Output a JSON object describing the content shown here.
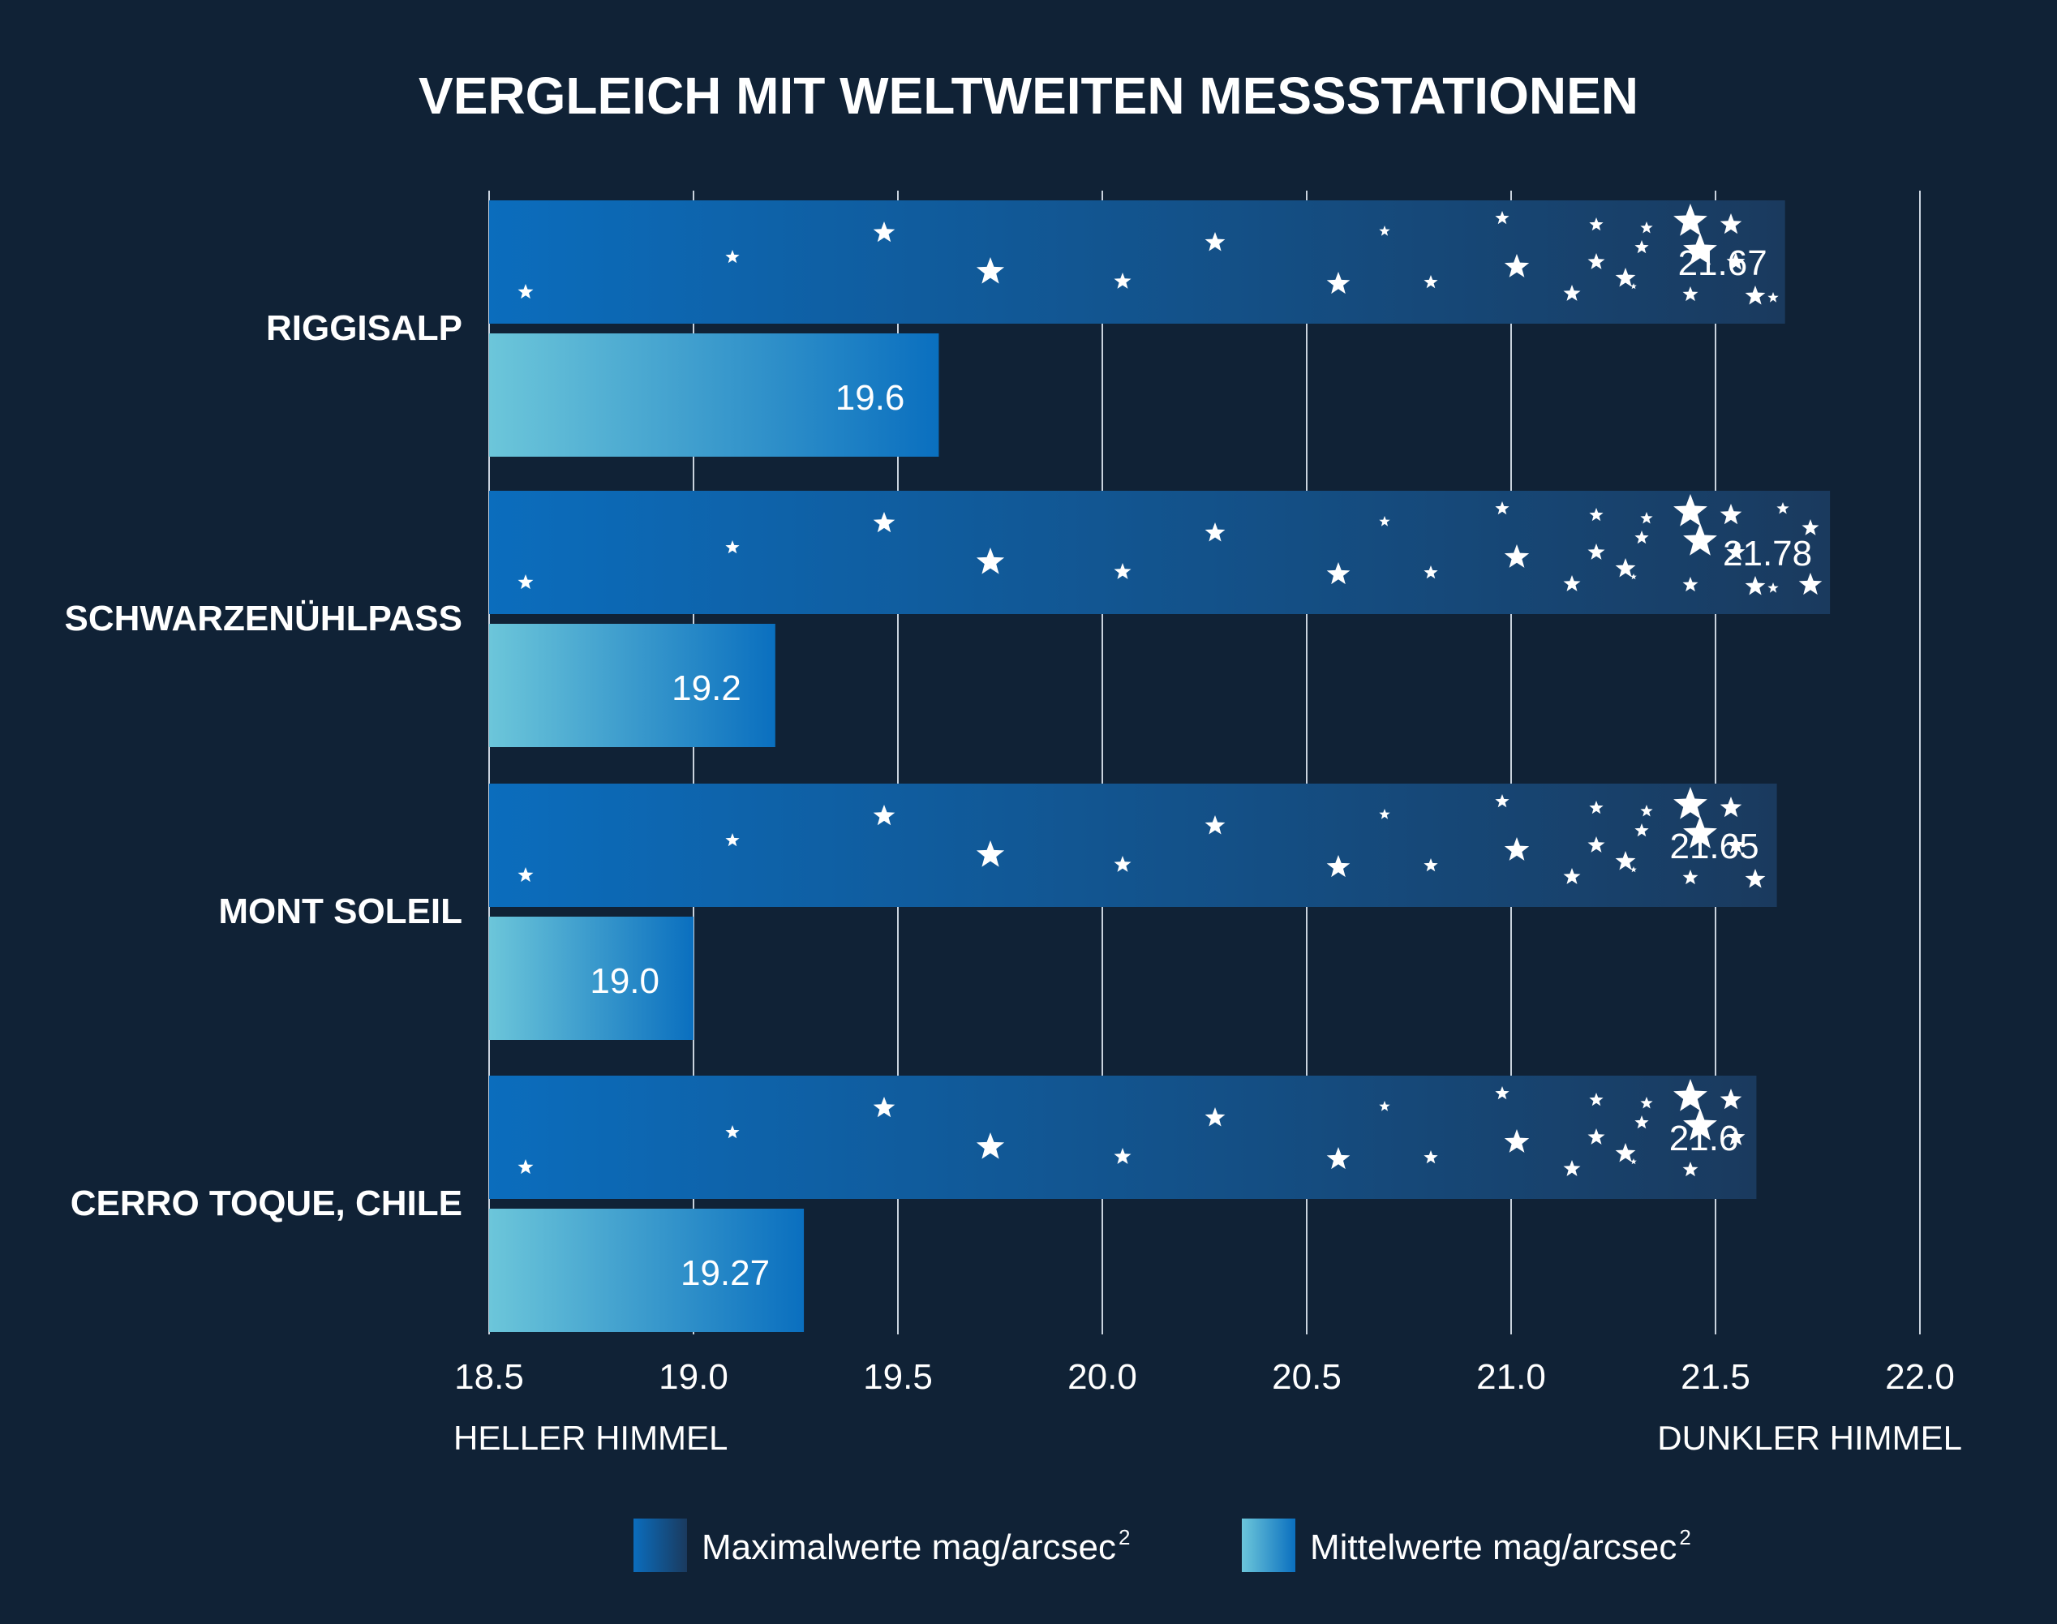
{
  "chart_data": {
    "type": "bar",
    "orientation": "horizontal",
    "title": "VERGLEICH MIT WELTWEITEN MESSSTATIONEN",
    "categories": [
      "RIGGISALP",
      "SCHWARZENÜHLPASS",
      "MONT SOLEIL",
      "CERRO TOQUE, CHILE"
    ],
    "series": [
      {
        "name": "Maximalwerte mag/arcsec",
        "values": [
          21.67,
          21.78,
          21.65,
          21.6
        ],
        "labels": [
          "21.67",
          "21.78",
          "21.65",
          "21.6"
        ]
      },
      {
        "name": "Mittelwerte mag/arcsec",
        "values": [
          19.6,
          19.2,
          19.0,
          19.27
        ],
        "labels": [
          "19.6",
          "19.2",
          "19.0",
          "19.27"
        ]
      }
    ],
    "legend_superscript": "2",
    "xlim": [
      18.5,
      22.0
    ],
    "xticks": [
      "18.5",
      "19.0",
      "19.5",
      "20.0",
      "20.5",
      "21.0",
      "21.5",
      "22.0"
    ],
    "x_end_labels": {
      "left": "HELLER HIMMEL",
      "right": "DUNKLER HIMMEL"
    },
    "grid": "vertical",
    "legend_position": "bottom",
    "colors": {
      "background": "#102236",
      "max_start": "#0b6dbd",
      "max_end": "#1a3a5e",
      "mean_start": "#6cc6da",
      "mean_end": "#0a6fbf"
    },
    "decoration": "star-icon"
  }
}
